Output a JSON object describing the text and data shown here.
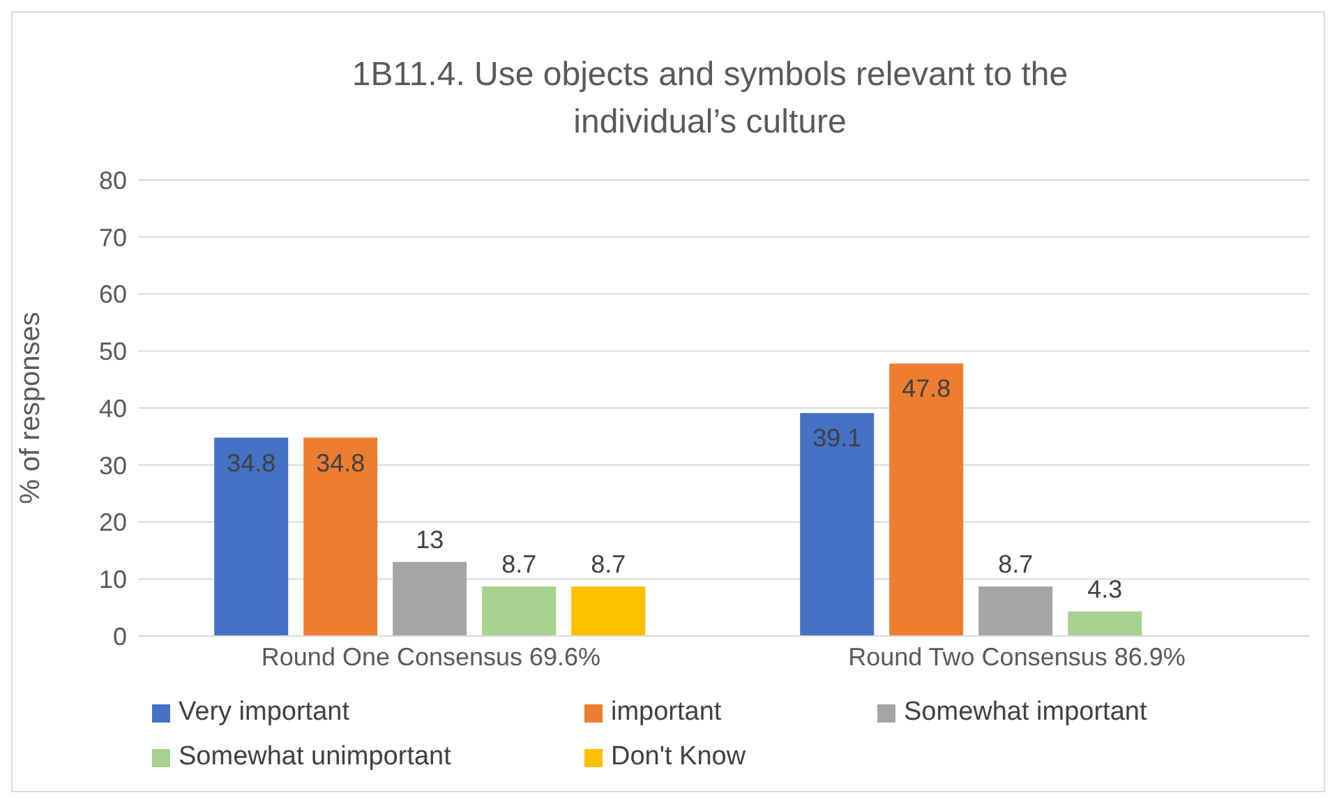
{
  "chart_data": {
    "type": "bar",
    "title": "1B11.4. Use objects and symbols relevant to the individual’s culture",
    "ylabel": "% of responses",
    "categories": [
      "Round One Consensus 69.6%",
      "Round Two Consensus 86.9%"
    ],
    "series": [
      {
        "name": "Very important",
        "color": "#4472c4",
        "values": [
          34.8,
          39.1
        ]
      },
      {
        "name": "important",
        "color": "#ed7d31",
        "values": [
          34.8,
          47.8
        ]
      },
      {
        "name": "Somewhat important",
        "color": "#a5a5a5",
        "values": [
          13,
          8.7
        ]
      },
      {
        "name": "Somewhat unimportant",
        "color": "#a9d18e",
        "values": [
          8.7,
          4.3
        ]
      },
      {
        "name": "Don't Know",
        "color": "#ffc000",
        "values": [
          8.7,
          null
        ]
      }
    ],
    "ylim": [
      0,
      80
    ],
    "yticks": [
      0,
      10,
      20,
      30,
      40,
      50,
      60,
      70,
      80
    ],
    "grid": "y",
    "legend": "bottom",
    "data_labels": true
  }
}
